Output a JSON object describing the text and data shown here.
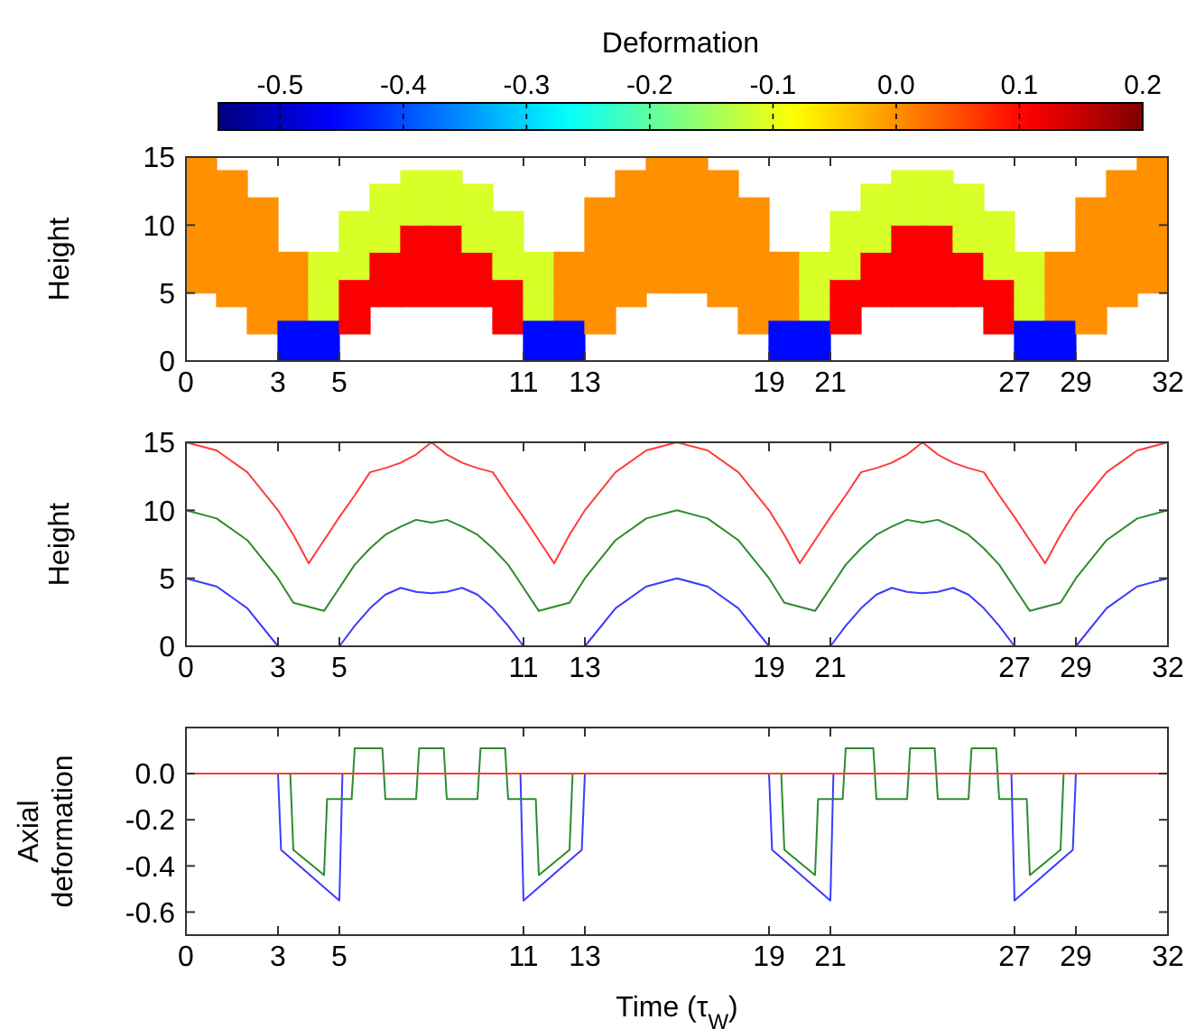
{
  "chart_data": [
    {
      "type": "scatter",
      "clabel": "Deformation",
      "clim": [
        -0.55,
        0.2
      ],
      "cticks": [
        -0.5,
        -0.4,
        -0.3,
        -0.2,
        -0.1,
        {
          "value": 0,
          "label": "0.0"
        },
        0.1,
        0.2
      ],
      "ylabel": "Height",
      "xlim": [
        0,
        32
      ],
      "ylim": [
        0,
        15
      ],
      "xticks": [
        0,
        3,
        5,
        11,
        13,
        19,
        21,
        27,
        29,
        32
      ],
      "yticks": [
        0,
        5,
        10,
        15
      ],
      "x": [
        0.5,
        0.5,
        0.5,
        0.5,
        0.5,
        0.5,
        0.5,
        0.5,
        0.5,
        0.5,
        1.5,
        1.5,
        1.5,
        1.5,
        1.5,
        1.5,
        1.5,
        1.5,
        1.5,
        1.5,
        2.5,
        2.5,
        2.5,
        2.5,
        2.5,
        2.5,
        2.5,
        2.5,
        2.5,
        2.5,
        3.5,
        3.5,
        3.5,
        3.5,
        3.5,
        3.5,
        3.5,
        3.5,
        4.5,
        4.5,
        4.5,
        4.5,
        4.5,
        4.5,
        4.5,
        4.5,
        5.5,
        5.5,
        5.5,
        5.5,
        5.5,
        5.5,
        5.5,
        5.5,
        5.5,
        6.5,
        6.5,
        6.5,
        6.5,
        6.5,
        6.5,
        6.5,
        6.5,
        6.5,
        7.5,
        7.5,
        7.5,
        7.5,
        7.5,
        7.5,
        7.5,
        7.5,
        7.5,
        7.5,
        8.5,
        8.5,
        8.5,
        8.5,
        8.5,
        8.5,
        8.5,
        8.5,
        8.5,
        8.5,
        9.5,
        9.5,
        9.5,
        9.5,
        9.5,
        9.5,
        9.5,
        9.5,
        9.5,
        10.5,
        10.5,
        10.5,
        10.5,
        10.5,
        10.5,
        10.5,
        10.5,
        10.5,
        11.5,
        11.5,
        11.5,
        11.5,
        11.5,
        11.5,
        11.5,
        11.5,
        12.5,
        12.5,
        12.5,
        12.5,
        12.5,
        12.5,
        12.5,
        12.5,
        13.5,
        13.5,
        13.5,
        13.5,
        13.5,
        13.5,
        13.5,
        13.5,
        13.5,
        13.5,
        14.5,
        14.5,
        14.5,
        14.5,
        14.5,
        14.5,
        14.5,
        14.5,
        14.5,
        14.5,
        15.5,
        15.5,
        15.5,
        15.5,
        15.5,
        15.5,
        15.5,
        15.5,
        15.5,
        15.5,
        16.5,
        16.5,
        16.5,
        16.5,
        16.5,
        16.5,
        16.5,
        16.5,
        16.5,
        16.5,
        17.5,
        17.5,
        17.5,
        17.5,
        17.5,
        17.5,
        17.5,
        17.5,
        17.5,
        17.5,
        18.5,
        18.5,
        18.5,
        18.5,
        18.5,
        18.5,
        18.5,
        18.5,
        18.5,
        18.5,
        19.5,
        19.5,
        19.5,
        19.5,
        19.5,
        19.5,
        19.5,
        19.5,
        20.5,
        20.5,
        20.5,
        20.5,
        20.5,
        20.5,
        20.5,
        20.5,
        21.5,
        21.5,
        21.5,
        21.5,
        21.5,
        21.5,
        21.5,
        21.5,
        21.5,
        22.5,
        22.5,
        22.5,
        22.5,
        22.5,
        22.5,
        22.5,
        22.5,
        22.5,
        23.5,
        23.5,
        23.5,
        23.5,
        23.5,
        23.5,
        23.5,
        23.5,
        23.5,
        23.5,
        24.5,
        24.5,
        24.5,
        24.5,
        24.5,
        24.5,
        24.5,
        24.5,
        24.5,
        24.5,
        25.5,
        25.5,
        25.5,
        25.5,
        25.5,
        25.5,
        25.5,
        25.5,
        25.5,
        26.5,
        26.5,
        26.5,
        26.5,
        26.5,
        26.5,
        26.5,
        26.5,
        26.5,
        27.5,
        27.5,
        27.5,
        27.5,
        27.5,
        27.5,
        27.5,
        27.5,
        28.5,
        28.5,
        28.5,
        28.5,
        28.5,
        28.5,
        28.5,
        28.5,
        29.5,
        29.5,
        29.5,
        29.5,
        29.5,
        29.5,
        29.5,
        29.5,
        29.5,
        29.5,
        30.5,
        30.5,
        30.5,
        30.5,
        30.5,
        30.5,
        30.5,
        30.5,
        30.5,
        30.5,
        31.5,
        31.5,
        31.5,
        31.5,
        31.5,
        31.5,
        31.5,
        31.5,
        31.5,
        31.5
      ],
      "values": [
        5.5,
        6.5,
        7.5,
        8.5,
        9.5,
        10.5,
        11.5,
        12.5,
        13.5,
        14.5,
        4.5,
        5.5,
        6.5,
        7.5,
        8.5,
        9.5,
        10.5,
        11.5,
        12.5,
        13.5,
        2.5,
        3.5,
        4.5,
        5.5,
        6.5,
        7.5,
        8.5,
        9.5,
        10.5,
        11.5,
        0.5,
        1.5,
        2.5,
        3.5,
        4.5,
        5.5,
        6.5,
        7.5,
        0.5,
        1.5,
        2.5,
        3.5,
        4.5,
        5.5,
        6.5,
        7.5,
        2.5,
        3.5,
        4.5,
        5.5,
        6.5,
        7.5,
        8.5,
        9.5,
        10.5,
        4.5,
        5.5,
        6.5,
        7.5,
        8.5,
        9.5,
        10.5,
        11.5,
        12.5,
        4.5,
        5.5,
        6.5,
        7.5,
        8.5,
        9.5,
        10.5,
        11.5,
        12.5,
        13.5,
        4.5,
        5.5,
        6.5,
        7.5,
        8.5,
        9.5,
        10.5,
        11.5,
        12.5,
        13.5,
        4.5,
        5.5,
        6.5,
        7.5,
        8.5,
        9.5,
        10.5,
        11.5,
        12.5,
        2.5,
        3.5,
        4.5,
        5.5,
        6.5,
        7.5,
        8.5,
        9.5,
        10.5,
        0.5,
        1.5,
        2.5,
        3.5,
        4.5,
        5.5,
        6.5,
        7.5,
        0.5,
        1.5,
        2.5,
        3.5,
        4.5,
        5.5,
        6.5,
        7.5,
        2.5,
        3.5,
        4.5,
        5.5,
        6.5,
        7.5,
        8.5,
        9.5,
        10.5,
        11.5,
        4.5,
        5.5,
        6.5,
        7.5,
        8.5,
        9.5,
        10.5,
        11.5,
        12.5,
        13.5,
        5.5,
        6.5,
        7.5,
        8.5,
        9.5,
        10.5,
        11.5,
        12.5,
        13.5,
        14.5,
        5.5,
        6.5,
        7.5,
        8.5,
        9.5,
        10.5,
        11.5,
        12.5,
        13.5,
        14.5,
        4.5,
        5.5,
        6.5,
        7.5,
        8.5,
        9.5,
        10.5,
        11.5,
        12.5,
        13.5,
        2.5,
        3.5,
        4.5,
        5.5,
        6.5,
        7.5,
        8.5,
        9.5,
        10.5,
        11.5,
        0.5,
        1.5,
        2.5,
        3.5,
        4.5,
        5.5,
        6.5,
        7.5,
        0.5,
        1.5,
        2.5,
        3.5,
        4.5,
        5.5,
        6.5,
        7.5,
        2.5,
        3.5,
        4.5,
        5.5,
        6.5,
        7.5,
        8.5,
        9.5,
        10.5,
        4.5,
        5.5,
        6.5,
        7.5,
        8.5,
        9.5,
        10.5,
        11.5,
        12.5,
        4.5,
        5.5,
        6.5,
        7.5,
        8.5,
        9.5,
        10.5,
        11.5,
        12.5,
        13.5,
        4.5,
        5.5,
        6.5,
        7.5,
        8.5,
        9.5,
        10.5,
        11.5,
        12.5,
        13.5,
        4.5,
        5.5,
        6.5,
        7.5,
        8.5,
        9.5,
        10.5,
        11.5,
        12.5,
        2.5,
        3.5,
        4.5,
        5.5,
        6.5,
        7.5,
        8.5,
        9.5,
        10.5,
        0.5,
        1.5,
        2.5,
        3.5,
        4.5,
        5.5,
        6.5,
        7.5,
        0.5,
        1.5,
        2.5,
        3.5,
        4.5,
        5.5,
        6.5,
        7.5,
        2.5,
        3.5,
        4.5,
        5.5,
        6.5,
        7.5,
        8.5,
        9.5,
        10.5,
        11.5,
        4.5,
        5.5,
        6.5,
        7.5,
        8.5,
        9.5,
        10.5,
        11.5,
        12.5,
        13.5,
        5.5,
        6.5,
        7.5,
        8.5,
        9.5,
        10.5,
        11.5,
        12.5,
        13.5,
        14.5
      ],
      "cvalues": [
        0,
        0,
        0,
        0,
        0,
        0,
        0,
        0,
        0,
        0,
        0,
        0,
        0,
        0,
        0,
        0,
        0,
        0,
        0,
        0,
        0,
        0,
        0,
        0,
        0,
        0,
        0,
        0,
        0,
        0,
        -0.45,
        -0.45,
        -0.45,
        0,
        0,
        0,
        0,
        0,
        -0.45,
        -0.45,
        -0.45,
        -0.11,
        -0.11,
        -0.11,
        -0.11,
        -0.11,
        0.11,
        0.11,
        0.11,
        0.11,
        -0.11,
        -0.11,
        -0.11,
        -0.11,
        -0.11,
        0.11,
        0.11,
        0.11,
        0.11,
        -0.11,
        -0.11,
        -0.11,
        -0.11,
        -0.11,
        0.11,
        0.11,
        0.11,
        0.11,
        0.11,
        0.11,
        -0.11,
        -0.11,
        -0.11,
        -0.11,
        0.11,
        0.11,
        0.11,
        0.11,
        0.11,
        0.11,
        -0.11,
        -0.11,
        -0.11,
        -0.11,
        0.11,
        0.11,
        0.11,
        0.11,
        -0.11,
        -0.11,
        -0.11,
        -0.11,
        -0.11,
        0.11,
        0.11,
        0.11,
        0.11,
        -0.11,
        -0.11,
        -0.11,
        -0.11,
        -0.11,
        -0.45,
        -0.45,
        -0.45,
        -0.11,
        -0.11,
        -0.11,
        -0.11,
        -0.11,
        -0.45,
        -0.45,
        -0.45,
        0,
        0,
        0,
        0,
        0,
        0,
        0,
        0,
        0,
        0,
        0,
        0,
        0,
        0,
        0,
        0,
        0,
        0,
        0,
        0,
        0,
        0,
        0,
        0,
        0,
        0,
        0,
        0,
        0,
        0,
        0,
        0,
        0,
        0,
        0,
        0,
        0,
        0,
        0,
        0,
        0,
        0,
        0,
        0,
        0,
        0,
        0,
        0,
        0,
        0,
        0,
        0,
        0,
        0,
        0,
        0,
        0,
        0,
        0,
        0,
        0,
        0,
        0,
        0,
        0,
        -0.45,
        -0.45,
        -0.45,
        0,
        0,
        0,
        0,
        0,
        -0.45,
        -0.45,
        -0.45,
        -0.11,
        -0.11,
        -0.11,
        -0.11,
        -0.11,
        0.11,
        0.11,
        0.11,
        0.11,
        -0.11,
        -0.11,
        -0.11,
        -0.11,
        -0.11,
        0.11,
        0.11,
        0.11,
        0.11,
        -0.11,
        -0.11,
        -0.11,
        -0.11,
        -0.11,
        0.11,
        0.11,
        0.11,
        0.11,
        0.11,
        0.11,
        -0.11,
        -0.11,
        -0.11,
        -0.11,
        0.11,
        0.11,
        0.11,
        0.11,
        0.11,
        0.11,
        -0.11,
        -0.11,
        -0.11,
        -0.11,
        0.11,
        0.11,
        0.11,
        0.11,
        -0.11,
        -0.11,
        -0.11,
        -0.11,
        -0.11,
        0.11,
        0.11,
        0.11,
        0.11,
        -0.11,
        -0.11,
        -0.11,
        -0.11,
        -0.11,
        -0.45,
        -0.45,
        -0.45,
        -0.11,
        -0.11,
        -0.11,
        -0.11,
        -0.11,
        -0.45,
        -0.45,
        -0.45,
        0,
        0,
        0,
        0,
        0,
        0,
        0,
        0,
        0,
        0,
        0,
        0,
        0,
        0,
        0,
        0,
        0,
        0,
        0,
        0,
        0,
        0,
        0,
        0,
        0,
        0,
        0,
        0,
        0,
        0,
        0,
        0,
        0,
        0,
        0
      ]
    },
    {
      "type": "line",
      "ylabel": "Height",
      "xlim": [
        0,
        32
      ],
      "ylim": [
        0,
        15
      ],
      "xticks": [
        0,
        3,
        5,
        11,
        13,
        19,
        21,
        27,
        29,
        32
      ],
      "yticks": [
        0,
        5,
        10,
        15
      ],
      "x": [
        0,
        1,
        2,
        3,
        3.5,
        4,
        4.5,
        5,
        5.5,
        6,
        6.5,
        7,
        7.5,
        8,
        8.5,
        9,
        9.5,
        10,
        10.5,
        11,
        11.5,
        12,
        12.5,
        13,
        14,
        15,
        16,
        17,
        18,
        19,
        19.5,
        20,
        20.5,
        21,
        21.5,
        22,
        22.5,
        23,
        23.5,
        24,
        24.5,
        25,
        25.5,
        26,
        26.5,
        27,
        27.5,
        28,
        28.5,
        29,
        30,
        31,
        32
      ],
      "series": [
        {
          "color": "#ff3b3b",
          "values": [
            15,
            14.4,
            12.8,
            10,
            8.2,
            6.1,
            7.8,
            9.5,
            11.1,
            12.8,
            13.1,
            13.5,
            14.1,
            15,
            14.1,
            13.5,
            13.1,
            12.8,
            11.1,
            9.5,
            7.8,
            6.1,
            8.2,
            10,
            12.8,
            14.4,
            15,
            14.4,
            12.8,
            10,
            8.2,
            6.1,
            7.8,
            9.5,
            11.1,
            12.8,
            13.1,
            13.5,
            14.1,
            15,
            14.1,
            13.5,
            13.1,
            12.8,
            11.1,
            9.5,
            7.8,
            6.1,
            8.2,
            10,
            12.8,
            14.4,
            15
          ]
        },
        {
          "color": "#2e8b2e",
          "values": [
            10,
            9.4,
            7.8,
            5,
            3.2,
            2.9,
            2.6,
            4.3,
            6,
            7.2,
            8.2,
            8.8,
            9.3,
            9.1,
            9.3,
            8.8,
            8.2,
            7.2,
            6,
            4.3,
            2.6,
            2.9,
            3.2,
            5,
            7.8,
            9.4,
            10,
            9.4,
            7.8,
            5,
            3.2,
            2.9,
            2.6,
            4.3,
            6,
            7.2,
            8.2,
            8.8,
            9.3,
            9.1,
            9.3,
            8.8,
            8.2,
            7.2,
            6,
            4.3,
            2.6,
            2.9,
            3.2,
            5,
            7.8,
            9.4,
            10
          ]
        },
        {
          "color": "#3b3bff",
          "values": [
            5,
            4.4,
            2.8,
            0,
            null,
            null,
            null,
            0,
            1.5,
            2.8,
            3.8,
            4.3,
            4,
            3.9,
            4,
            4.3,
            3.8,
            2.8,
            1.5,
            0,
            null,
            null,
            null,
            0,
            2.8,
            4.4,
            5,
            4.4,
            2.8,
            0,
            null,
            null,
            null,
            0,
            1.5,
            2.8,
            3.8,
            4.3,
            4,
            3.9,
            4,
            4.3,
            3.8,
            2.8,
            1.5,
            0,
            null,
            null,
            null,
            0,
            2.8,
            4.4,
            5
          ]
        }
      ]
    },
    {
      "type": "line",
      "ylabel": "Axial deformation",
      "xlabel": "Time (τ$_{W}$)",
      "xlim": [
        0,
        32
      ],
      "ylim": [
        -0.7,
        0.2
      ],
      "xticks": [
        0,
        3,
        5,
        11,
        13,
        19,
        21,
        27,
        29,
        32
      ],
      "yticks": [
        {
          "value": 0,
          "label": "0.0"
        },
        -0.2,
        -0.4,
        -0.6
      ],
      "series": [
        {
          "color": "#3b3bff",
          "x": [
            3,
            3.1,
            5,
            5.1
          ],
          "values": [
            0,
            -0.33,
            -0.55,
            0
          ]
        },
        {
          "color": "#3b3bff",
          "x": [
            10.9,
            11,
            12.9,
            13
          ],
          "values": [
            0,
            -0.55,
            -0.33,
            0
          ]
        },
        {
          "color": "#3b3bff",
          "x": [
            19,
            19.1,
            21,
            21.1
          ],
          "values": [
            0,
            -0.33,
            -0.55,
            0
          ]
        },
        {
          "color": "#3b3bff",
          "x": [
            26.9,
            27,
            28.9,
            29
          ],
          "values": [
            0,
            -0.55,
            -0.33,
            0
          ]
        },
        {
          "color": "#2e8b2e",
          "x": [
            3.4,
            3.5,
            4.5,
            4.6,
            5.4,
            5.5,
            6.4,
            6.5,
            7.5,
            7.6,
            8.4,
            8.5,
            9.5,
            9.6,
            10.4,
            10.5,
            11.4,
            11.5,
            12.5,
            12.6
          ],
          "values": [
            0,
            -0.33,
            -0.44,
            -0.11,
            -0.11,
            0.11,
            0.11,
            -0.11,
            -0.11,
            0.11,
            0.11,
            -0.11,
            -0.11,
            0.11,
            0.11,
            -0.11,
            -0.11,
            -0.44,
            -0.33,
            0
          ]
        },
        {
          "color": "#2e8b2e",
          "x": [
            19.4,
            19.5,
            20.5,
            20.6,
            21.4,
            21.5,
            22.4,
            22.5,
            23.5,
            23.6,
            24.4,
            24.5,
            25.5,
            25.6,
            26.4,
            26.5,
            27.4,
            27.5,
            28.5,
            28.6
          ],
          "values": [
            0,
            -0.33,
            -0.44,
            -0.11,
            -0.11,
            0.11,
            0.11,
            -0.11,
            -0.11,
            0.11,
            0.11,
            -0.11,
            -0.11,
            0.11,
            0.11,
            -0.11,
            -0.11,
            -0.44,
            -0.33,
            0
          ]
        },
        {
          "color": "#ff3b3b",
          "x": [
            0,
            32
          ],
          "values": [
            0,
            0
          ]
        }
      ]
    }
  ]
}
